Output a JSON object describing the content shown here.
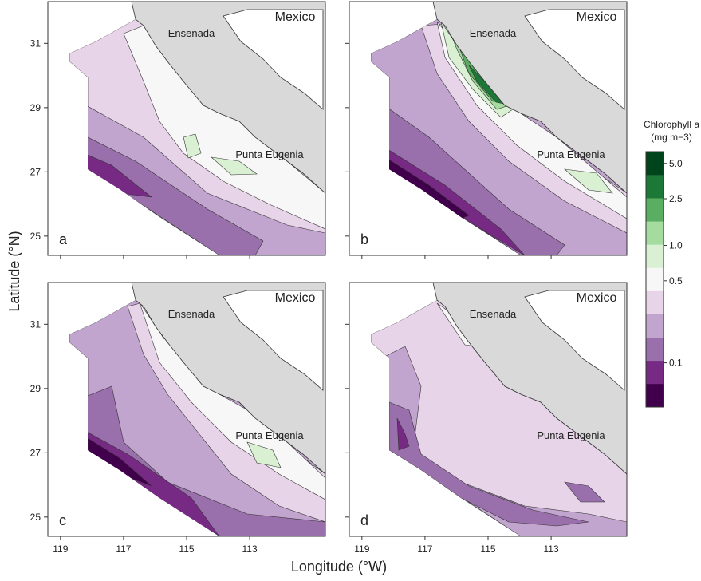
{
  "xlabel": "Longitude (°W)",
  "ylabel": "Latitude (°N)",
  "xlim": [
    119.4,
    110.6
  ],
  "ylim": [
    24.4,
    32.3
  ],
  "xticks": [
    119,
    117,
    115,
    113
  ],
  "yticks": [
    31,
    29,
    27,
    25
  ],
  "panels": [
    {
      "letter": "a",
      "places": [
        "Mexico",
        "Ensenada",
        "Punta Eugenia"
      ]
    },
    {
      "letter": "b",
      "places": [
        "Mexico",
        "Ensenada",
        "Punta Eugenia"
      ]
    },
    {
      "letter": "c",
      "places": [
        "Mexico",
        "Ensenada",
        "Punta Eugenia"
      ]
    },
    {
      "letter": "d",
      "places": [
        "Mexico",
        "Ensenada",
        "Punta Eugenia"
      ]
    }
  ],
  "colorbar": {
    "title": "Chlorophyll a",
    "units": "(mg m−3)",
    "log": true,
    "lim": [
      0.042,
      6.3
    ],
    "ticks": [
      {
        "value": 5,
        "label": "5.0"
      },
      2.5,
      {
        "value": 1,
        "label": "1.0"
      },
      0.5,
      0.1
    ],
    "colors": [
      "#40004b",
      "#762a83",
      "#9970ab",
      "#c2a5cf",
      "#e7d4e8",
      "#f7f7f7",
      "#d9f0d3",
      "#a6dba0",
      "#5aae61",
      "#1b7837",
      "#00441b"
    ]
  }
}
